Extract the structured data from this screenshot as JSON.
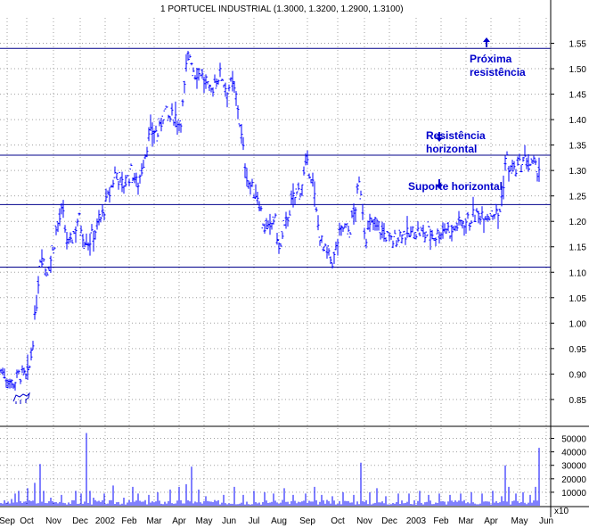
{
  "chart_data": {
    "type": "ohlc",
    "title": "1 PORTUCEL INDUSTRIAL (1.3000, 1.3200, 1.2900, 1.3100)",
    "price_axis": {
      "min": 0.82,
      "max": 1.6,
      "ticks": [
        "0.85",
        "0.90",
        "0.95",
        "1.00",
        "1.05",
        "1.10",
        "1.15",
        "1.20",
        "1.25",
        "1.30",
        "1.35",
        "1.40",
        "1.45",
        "1.50",
        "1.55"
      ]
    },
    "volume_axis": {
      "min": 0,
      "max": 55000,
      "ticks": [
        "10000",
        "20000",
        "30000",
        "40000",
        "50000"
      ],
      "scale_label": "x10"
    },
    "months": [
      "Sep",
      "Oct",
      "Nov",
      "Dec",
      "2002",
      "Feb",
      "Mar",
      "Apr",
      "May",
      "Jun",
      "Jul",
      "Aug",
      "Sep",
      "Oct",
      "Nov",
      "Dec",
      "2003",
      "Feb",
      "Mar",
      "Apr",
      "May",
      "Jun"
    ],
    "price_path": [
      [
        0,
        0.91
      ],
      [
        14,
        0.88
      ],
      [
        22,
        0.9
      ],
      [
        30,
        0.89
      ],
      [
        34,
        0.92
      ],
      [
        40,
        1.02
      ],
      [
        46,
        1.15
      ],
      [
        52,
        1.1
      ],
      [
        58,
        1.13
      ],
      [
        64,
        1.19
      ],
      [
        70,
        1.22
      ],
      [
        76,
        1.15
      ],
      [
        82,
        1.17
      ],
      [
        88,
        1.21
      ],
      [
        94,
        1.17
      ],
      [
        100,
        1.16
      ],
      [
        106,
        1.18
      ],
      [
        112,
        1.2
      ],
      [
        118,
        1.23
      ],
      [
        124,
        1.26
      ],
      [
        130,
        1.3
      ],
      [
        136,
        1.27
      ],
      [
        142,
        1.28
      ],
      [
        148,
        1.3
      ],
      [
        154,
        1.27
      ],
      [
        160,
        1.31
      ],
      [
        166,
        1.36
      ],
      [
        172,
        1.38
      ],
      [
        178,
        1.37
      ],
      [
        184,
        1.42
      ],
      [
        190,
        1.4
      ],
      [
        196,
        1.41
      ],
      [
        202,
        1.39
      ],
      [
        206,
        1.44
      ],
      [
        210,
        1.52
      ],
      [
        214,
        1.53
      ],
      [
        218,
        1.49
      ],
      [
        224,
        1.5
      ],
      [
        230,
        1.47
      ],
      [
        236,
        1.45
      ],
      [
        242,
        1.48
      ],
      [
        248,
        1.49
      ],
      [
        254,
        1.46
      ],
      [
        260,
        1.47
      ],
      [
        266,
        1.44
      ],
      [
        272,
        1.35
      ],
      [
        278,
        1.28
      ],
      [
        284,
        1.26
      ],
      [
        290,
        1.25
      ],
      [
        296,
        1.19
      ],
      [
        302,
        1.18
      ],
      [
        308,
        1.21
      ],
      [
        314,
        1.14
      ],
      [
        320,
        1.19
      ],
      [
        326,
        1.23
      ],
      [
        332,
        1.25
      ],
      [
        338,
        1.27
      ],
      [
        344,
        1.31
      ],
      [
        350,
        1.29
      ],
      [
        356,
        1.2
      ],
      [
        362,
        1.15
      ],
      [
        368,
        1.13
      ],
      [
        374,
        1.12
      ],
      [
        380,
        1.17
      ],
      [
        386,
        1.19
      ],
      [
        392,
        1.18
      ],
      [
        398,
        1.22
      ],
      [
        404,
        1.28
      ],
      [
        410,
        1.17
      ],
      [
        416,
        1.19
      ],
      [
        422,
        1.2
      ],
      [
        428,
        1.18
      ],
      [
        434,
        1.17
      ],
      [
        440,
        1.16
      ],
      [
        446,
        1.17
      ],
      [
        452,
        1.18
      ],
      [
        458,
        1.17
      ],
      [
        464,
        1.18
      ],
      [
        470,
        1.18
      ],
      [
        476,
        1.17
      ],
      [
        482,
        1.18
      ],
      [
        488,
        1.17
      ],
      [
        494,
        1.18
      ],
      [
        500,
        1.19
      ],
      [
        506,
        1.18
      ],
      [
        512,
        1.19
      ],
      [
        518,
        1.2
      ],
      [
        524,
        1.2
      ],
      [
        530,
        1.21
      ],
      [
        536,
        1.21
      ],
      [
        542,
        1.22
      ],
      [
        548,
        1.21
      ],
      [
        554,
        1.22
      ],
      [
        560,
        1.21
      ],
      [
        564,
        1.26
      ],
      [
        568,
        1.33
      ],
      [
        572,
        1.3
      ],
      [
        578,
        1.3
      ],
      [
        584,
        1.31
      ],
      [
        590,
        1.32
      ],
      [
        596,
        1.31
      ],
      [
        602,
        1.3
      ],
      [
        606,
        1.31
      ]
    ],
    "volume_spikes": [
      [
        12,
        5000
      ],
      [
        16,
        9000
      ],
      [
        20,
        11000
      ],
      [
        30,
        13000
      ],
      [
        38,
        17000
      ],
      [
        44,
        31000
      ],
      [
        48,
        11000
      ],
      [
        56,
        6000
      ],
      [
        68,
        8000
      ],
      [
        84,
        11000
      ],
      [
        90,
        9000
      ],
      [
        96,
        54000
      ],
      [
        100,
        11000
      ],
      [
        104,
        6000
      ],
      [
        116,
        9000
      ],
      [
        126,
        15000
      ],
      [
        138,
        6000
      ],
      [
        148,
        14000
      ],
      [
        154,
        9000
      ],
      [
        166,
        8000
      ],
      [
        176,
        10000
      ],
      [
        190,
        12000
      ],
      [
        200,
        14000
      ],
      [
        208,
        16000
      ],
      [
        214,
        29000
      ],
      [
        222,
        12000
      ],
      [
        230,
        7000
      ],
      [
        250,
        8000
      ],
      [
        262,
        14000
      ],
      [
        272,
        8000
      ],
      [
        284,
        11000
      ],
      [
        296,
        10000
      ],
      [
        306,
        9000
      ],
      [
        318,
        13000
      ],
      [
        328,
        8000
      ],
      [
        342,
        9000
      ],
      [
        352,
        14000
      ],
      [
        360,
        8000
      ],
      [
        372,
        7000
      ],
      [
        384,
        10000
      ],
      [
        396,
        8000
      ],
      [
        404,
        32000
      ],
      [
        414,
        10000
      ],
      [
        422,
        13000
      ],
      [
        432,
        7000
      ],
      [
        446,
        9000
      ],
      [
        458,
        9000
      ],
      [
        470,
        11000
      ],
      [
        480,
        8000
      ],
      [
        492,
        9000
      ],
      [
        504,
        8000
      ],
      [
        516,
        9000
      ],
      [
        528,
        10000
      ],
      [
        540,
        9000
      ],
      [
        552,
        11000
      ],
      [
        562,
        7000
      ],
      [
        566,
        30000
      ],
      [
        570,
        14000
      ],
      [
        578,
        9000
      ],
      [
        586,
        10000
      ],
      [
        594,
        8000
      ],
      [
        600,
        14000
      ],
      [
        604,
        43000
      ]
    ],
    "horizontal_lines": [
      1.54,
      1.33,
      1.233,
      1.11
    ],
    "annotations": [
      {
        "name": "proxima-resistencia-label",
        "lines": [
          "Próxima",
          "resistência"
        ],
        "arrow": "up"
      },
      {
        "name": "resistencia-horizontal-label",
        "lines": [
          "Resistência",
          "horizontal"
        ],
        "arrow": "down"
      },
      {
        "name": "suporte-horizontal-label",
        "lines": [
          "Suporte horizontal"
        ],
        "arrow": "down"
      }
    ],
    "grid": true,
    "colors": {
      "bars": "#0000ff",
      "lines": "#00008b",
      "grid": "#a0a0a0",
      "annotation": "#0000cc"
    }
  }
}
